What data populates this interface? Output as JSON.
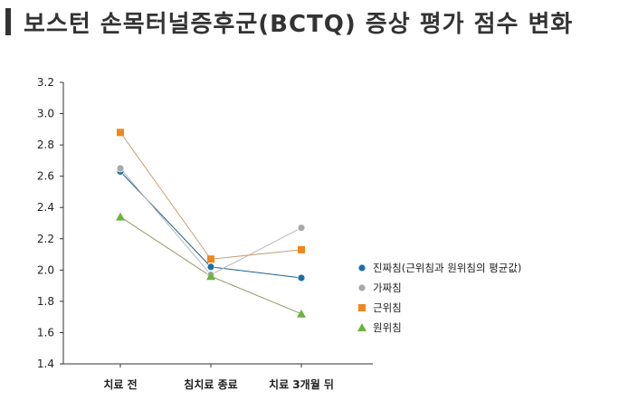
{
  "chart_data": {
    "type": "line",
    "title": "보스턴 손목터널증후군(BCTQ) 증상 평가 점수 변화",
    "xlabel": "",
    "ylabel": "",
    "categories": [
      "치료 전",
      "침치료 종료",
      "치료 3개월 뒤"
    ],
    "ylim": [
      1.4,
      3.2
    ],
    "yticks": [
      "1.4",
      "1.6",
      "1.8",
      "2.0",
      "2.2",
      "2.4",
      "2.6",
      "2.8",
      "3.0",
      "3.2"
    ],
    "grid": false,
    "legend_position": "right",
    "series": [
      {
        "name": "진짜침(근위침과 원위침의 평균값)",
        "values": [
          2.63,
          2.02,
          1.95
        ],
        "color": "#1f5f8b",
        "fill": "#1a6faa",
        "marker": "circle"
      },
      {
        "name": "가짜침",
        "values": [
          2.65,
          1.97,
          2.27
        ],
        "color": "#b8b8b8",
        "fill": "#a9a9a9",
        "marker": "circle"
      },
      {
        "name": "근위침",
        "values": [
          2.88,
          2.07,
          2.13
        ],
        "color": "#c8a079",
        "fill": "#f0871e",
        "marker": "square"
      },
      {
        "name": "원위침",
        "values": [
          2.34,
          1.96,
          1.72
        ],
        "color": "#8f9a6a",
        "fill": "#6db33f",
        "marker": "triangle"
      }
    ]
  }
}
